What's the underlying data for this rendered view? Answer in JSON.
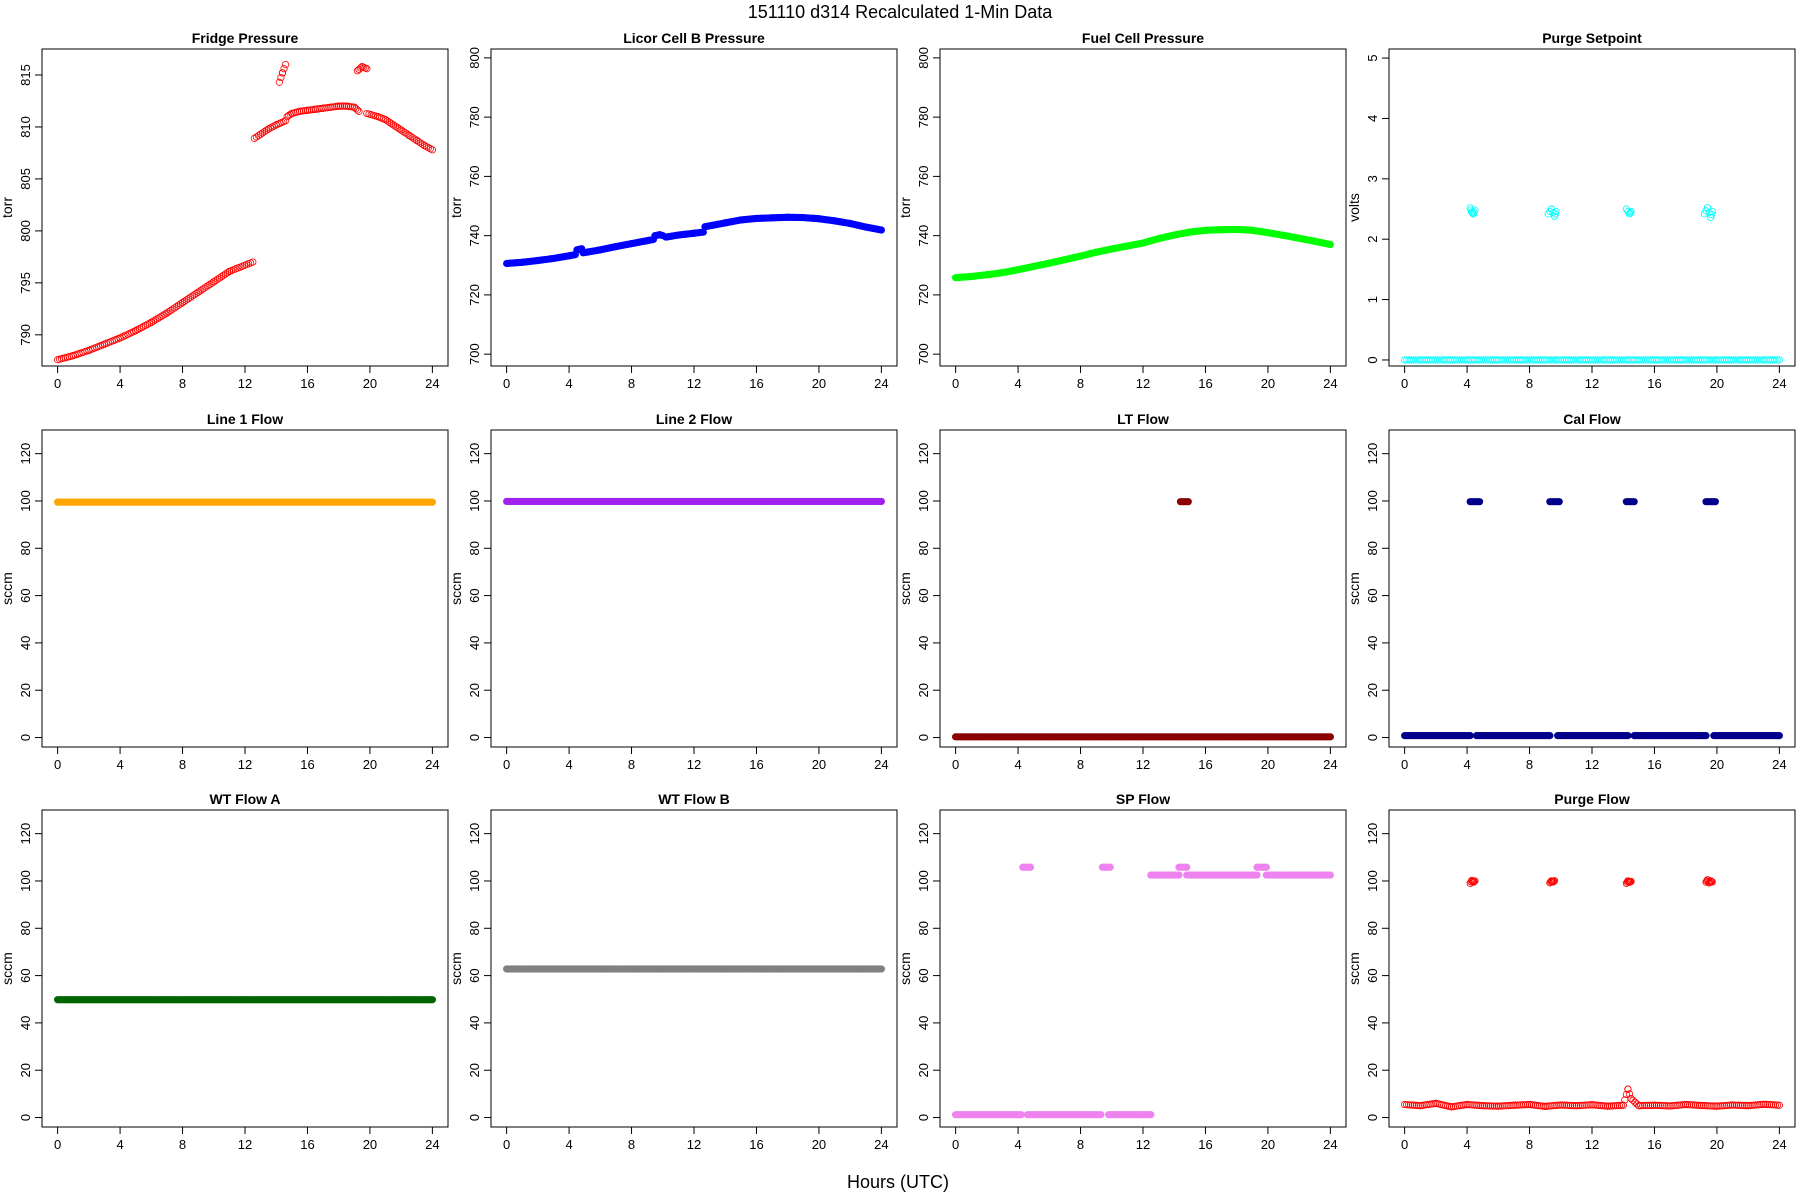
{
  "figure": {
    "title": "151110   d314   Recalculated 1-Min Data",
    "xlabel": "Hours (UTC)"
  },
  "chart_data": [
    {
      "type": "scatter",
      "title": "Fridge Pressure",
      "ylabel": "torr",
      "xlim": [
        -1,
        25
      ],
      "ylim": [
        787,
        817.5
      ],
      "xticks": [
        0,
        4,
        8,
        12,
        16,
        20,
        24
      ],
      "yticks": [
        790,
        795,
        800,
        805,
        810,
        815
      ],
      "color": "#ff0000",
      "marker": "open",
      "series": [
        {
          "x": [
            0,
            1,
            2,
            3,
            4,
            5,
            6,
            7,
            8,
            9,
            10,
            11,
            12.5
          ],
          "y": [
            787.6,
            788.0,
            788.5,
            789.1,
            789.7,
            790.4,
            791.2,
            792.1,
            793.1,
            794.1,
            795.1,
            796.1,
            797.0
          ]
        },
        {
          "x": [
            12.6,
            13,
            13.5,
            14,
            14.6
          ],
          "y": [
            808.9,
            809.3,
            809.8,
            810.2,
            810.6
          ]
        },
        {
          "x": [
            14.2,
            14.4,
            14.6
          ],
          "y": [
            814.3,
            815.2,
            816.0
          ]
        },
        {
          "x": [
            14.7,
            15,
            15.5,
            16,
            16.5,
            17,
            17.5,
            18,
            18.5,
            19,
            19.3
          ],
          "y": [
            811.0,
            811.3,
            811.5,
            811.6,
            811.7,
            811.8,
            811.9,
            812.0,
            812.0,
            811.9,
            811.5
          ]
        },
        {
          "x": [
            19.2,
            19.5,
            19.8
          ],
          "y": [
            815.4,
            815.8,
            815.6
          ]
        },
        {
          "x": [
            19.8,
            20.5,
            21,
            21.5,
            22,
            22.5,
            23,
            23.5,
            24
          ],
          "y": [
            811.3,
            811.0,
            810.7,
            810.2,
            809.7,
            809.2,
            808.7,
            808.2,
            807.8
          ]
        }
      ]
    },
    {
      "type": "scatter",
      "title": "Licor Cell B Pressure",
      "ylabel": "torr",
      "xlim": [
        -1,
        25
      ],
      "ylim": [
        696,
        803
      ],
      "xticks": [
        0,
        4,
        8,
        12,
        16,
        20,
        24
      ],
      "yticks": [
        700,
        720,
        740,
        760,
        780,
        800
      ],
      "color": "#0000ff",
      "marker": "filled",
      "series": [
        {
          "x": [
            0,
            1,
            2,
            3,
            4,
            4.4
          ],
          "y": [
            730.6,
            731.0,
            731.6,
            732.3,
            733.2,
            733.6
          ]
        },
        {
          "x": [
            4.5,
            4.8
          ],
          "y": [
            735.2,
            735.6
          ]
        },
        {
          "x": [
            4.9,
            6,
            7,
            8,
            9,
            9.4
          ],
          "y": [
            734.2,
            735.2,
            736.3,
            737.3,
            738.3,
            738.7
          ]
        },
        {
          "x": [
            9.5,
            9.8,
            10
          ],
          "y": [
            740.0,
            740.3,
            740.0
          ]
        },
        {
          "x": [
            10.2,
            11,
            12,
            12.6
          ],
          "y": [
            739.5,
            740.2,
            740.8,
            741.2
          ]
        },
        {
          "x": [
            12.7,
            14,
            15,
            16,
            17,
            18,
            19,
            20,
            21,
            22,
            23,
            24
          ],
          "y": [
            743.0,
            744.3,
            745.3,
            745.8,
            746.0,
            746.2,
            746.1,
            745.7,
            745.0,
            744.1,
            742.9,
            741.9
          ]
        }
      ]
    },
    {
      "type": "scatter",
      "title": "Fuel Cell Pressure",
      "ylabel": "torr",
      "xlim": [
        -1,
        25
      ],
      "ylim": [
        696,
        803
      ],
      "xticks": [
        0,
        4,
        8,
        12,
        16,
        20,
        24
      ],
      "yticks": [
        700,
        720,
        740,
        760,
        780,
        800
      ],
      "color": "#00ff00",
      "marker": "filled",
      "series": [
        {
          "x": [
            0,
            1,
            2,
            3,
            4,
            5,
            6,
            7,
            8,
            9,
            10,
            11,
            12,
            13,
            14,
            15,
            16,
            17,
            18,
            19,
            20,
            21,
            22,
            23,
            24
          ],
          "y": [
            725.8,
            726.2,
            726.8,
            727.5,
            728.5,
            729.6,
            730.7,
            731.9,
            733.1,
            734.4,
            735.5,
            736.5,
            737.5,
            739.0,
            740.2,
            741.2,
            741.8,
            742.0,
            742.1,
            741.8,
            741.0,
            740.1,
            739.1,
            738.1,
            737.0
          ]
        }
      ]
    },
    {
      "type": "scatter",
      "title": "Purge Setpoint",
      "ylabel": "volts",
      "xlim": [
        -1,
        25
      ],
      "ylim": [
        -0.1,
        5.15
      ],
      "xticks": [
        0,
        4,
        8,
        12,
        16,
        20,
        24
      ],
      "yticks": [
        0,
        1,
        2,
        3,
        4,
        5
      ],
      "color": "#00ffff",
      "marker": "open",
      "series": [
        {
          "x": [
            0,
            24
          ],
          "y": [
            0,
            0
          ]
        },
        {
          "x": [
            4.2,
            4.3,
            4.4,
            4.5
          ],
          "y": [
            2.52,
            2.45,
            2.42,
            2.48
          ]
        },
        {
          "x": [
            9.2,
            9.4,
            9.6,
            9.7
          ],
          "y": [
            2.42,
            2.5,
            2.38,
            2.46
          ]
        },
        {
          "x": [
            14.2,
            14.4,
            14.5
          ],
          "y": [
            2.5,
            2.42,
            2.46
          ]
        },
        {
          "x": [
            19.2,
            19.4,
            19.6,
            19.7
          ],
          "y": [
            2.42,
            2.52,
            2.36,
            2.46
          ]
        }
      ]
    },
    {
      "type": "scatter",
      "title": "Line 1 Flow",
      "ylabel": "sccm",
      "xlim": [
        -1,
        25
      ],
      "ylim": [
        -4,
        130
      ],
      "xticks": [
        0,
        4,
        8,
        12,
        16,
        20,
        24
      ],
      "yticks": [
        0,
        20,
        40,
        60,
        80,
        100,
        120
      ],
      "color": "#ffa500",
      "marker": "filled",
      "series": [
        {
          "x": [
            0,
            24
          ],
          "y": [
            99.5,
            99.5
          ]
        }
      ]
    },
    {
      "type": "scatter",
      "title": "Line 2 Flow",
      "ylabel": "sccm",
      "xlim": [
        -1,
        25
      ],
      "ylim": [
        -4,
        130
      ],
      "xticks": [
        0,
        4,
        8,
        12,
        16,
        20,
        24
      ],
      "yticks": [
        0,
        20,
        40,
        60,
        80,
        100,
        120
      ],
      "color": "#a020f0",
      "marker": "filled",
      "series": [
        {
          "x": [
            0,
            24
          ],
          "y": [
            99.8,
            99.8
          ]
        }
      ]
    },
    {
      "type": "scatter",
      "title": "LT Flow",
      "ylabel": "sccm",
      "xlim": [
        -1,
        25
      ],
      "ylim": [
        -4,
        130
      ],
      "xticks": [
        0,
        4,
        8,
        12,
        16,
        20,
        24
      ],
      "yticks": [
        0,
        20,
        40,
        60,
        80,
        100,
        120
      ],
      "color": "#8b0000",
      "marker": "filled",
      "series": [
        {
          "x": [
            0,
            24
          ],
          "y": [
            0.3,
            0.3
          ]
        },
        {
          "x": [
            14.4,
            14.9
          ],
          "y": [
            99.7,
            99.7
          ]
        }
      ]
    },
    {
      "type": "scatter",
      "title": "Cal Flow",
      "ylabel": "sccm",
      "xlim": [
        -1,
        25
      ],
      "ylim": [
        -4,
        130
      ],
      "xticks": [
        0,
        4,
        8,
        12,
        16,
        20,
        24
      ],
      "yticks": [
        0,
        20,
        40,
        60,
        80,
        100,
        120
      ],
      "color": "#00008b",
      "marker": "filled",
      "series": [
        {
          "x": [
            0,
            4.2
          ],
          "y": [
            0.8,
            0.8
          ]
        },
        {
          "x": [
            4.6,
            9.3
          ],
          "y": [
            0.8,
            0.8
          ]
        },
        {
          "x": [
            9.8,
            14.3
          ],
          "y": [
            0.8,
            0.8
          ]
        },
        {
          "x": [
            14.7,
            19.3
          ],
          "y": [
            0.8,
            0.8
          ]
        },
        {
          "x": [
            19.8,
            24
          ],
          "y": [
            0.8,
            0.8
          ]
        },
        {
          "x": [
            4.2,
            4.8
          ],
          "y": [
            99.7,
            99.7
          ]
        },
        {
          "x": [
            9.3,
            9.9
          ],
          "y": [
            99.7,
            99.7
          ]
        },
        {
          "x": [
            14.2,
            14.7
          ],
          "y": [
            99.7,
            99.7
          ]
        },
        {
          "x": [
            19.3,
            19.9
          ],
          "y": [
            99.7,
            99.7
          ]
        }
      ]
    },
    {
      "type": "scatter",
      "title": "WT Flow A",
      "ylabel": "sccm",
      "xlim": [
        -1,
        25
      ],
      "ylim": [
        -4,
        130
      ],
      "xticks": [
        0,
        4,
        8,
        12,
        16,
        20,
        24
      ],
      "yticks": [
        0,
        20,
        40,
        60,
        80,
        100,
        120
      ],
      "color": "#006400",
      "marker": "filled",
      "series": [
        {
          "x": [
            0,
            24
          ],
          "y": [
            49.8,
            49.8
          ]
        }
      ]
    },
    {
      "type": "scatter",
      "title": "WT Flow B",
      "ylabel": "sccm",
      "xlim": [
        -1,
        25
      ],
      "ylim": [
        -4,
        130
      ],
      "xticks": [
        0,
        4,
        8,
        12,
        16,
        20,
        24
      ],
      "yticks": [
        0,
        20,
        40,
        60,
        80,
        100,
        120
      ],
      "color": "#808080",
      "marker": "filled",
      "series": [
        {
          "x": [
            0,
            24
          ],
          "y": [
            62.8,
            62.8
          ]
        }
      ]
    },
    {
      "type": "scatter",
      "title": "SP Flow",
      "ylabel": "sccm",
      "xlim": [
        -1,
        25
      ],
      "ylim": [
        -4,
        130
      ],
      "xticks": [
        0,
        4,
        8,
        12,
        16,
        20,
        24
      ],
      "yticks": [
        0,
        20,
        40,
        60,
        80,
        100,
        120
      ],
      "color": "#ee82ee",
      "marker": "filled",
      "series": [
        {
          "x": [
            0,
            4.2
          ],
          "y": [
            1.2,
            1.2
          ]
        },
        {
          "x": [
            4.6,
            9.3
          ],
          "y": [
            1.2,
            1.2
          ]
        },
        {
          "x": [
            9.8,
            12.5
          ],
          "y": [
            1.2,
            1.2
          ]
        },
        {
          "x": [
            4.3,
            4.8
          ],
          "y": [
            105.8,
            105.8
          ]
        },
        {
          "x": [
            9.4,
            9.9
          ],
          "y": [
            105.8,
            105.8
          ]
        },
        {
          "x": [
            12.5,
            14.3
          ],
          "y": [
            102.5,
            102.5
          ]
        },
        {
          "x": [
            14.3,
            14.8
          ],
          "y": [
            105.8,
            105.8
          ]
        },
        {
          "x": [
            14.8,
            19.3
          ],
          "y": [
            102.5,
            102.5
          ]
        },
        {
          "x": [
            19.3,
            19.9
          ],
          "y": [
            105.8,
            105.8
          ]
        },
        {
          "x": [
            19.9,
            24
          ],
          "y": [
            102.5,
            102.5
          ]
        }
      ]
    },
    {
      "type": "scatter",
      "title": "Purge Flow",
      "ylabel": "sccm",
      "xlim": [
        -1,
        25
      ],
      "ylim": [
        -4,
        130
      ],
      "xticks": [
        0,
        4,
        8,
        12,
        16,
        20,
        24
      ],
      "yticks": [
        0,
        20,
        40,
        60,
        80,
        100,
        120
      ],
      "color": "#ff0000",
      "marker": "open",
      "series": [
        {
          "x": [
            0,
            1,
            2,
            3,
            4,
            5,
            6,
            7,
            8,
            9,
            10,
            11,
            12,
            13,
            14,
            14.3,
            14.5,
            15,
            16,
            17,
            18,
            19,
            20,
            21,
            22,
            23,
            24
          ],
          "y": [
            5.5,
            5.0,
            6.0,
            4.5,
            5.5,
            5.0,
            4.8,
            5.2,
            5.5,
            4.7,
            5.3,
            5.0,
            5.4,
            4.8,
            5.2,
            12.0,
            8.0,
            5.0,
            5.2,
            4.9,
            5.5,
            5.1,
            4.8,
            5.3,
            5.0,
            5.6,
            5.2
          ]
        },
        {
          "x": [
            4.2,
            4.3,
            4.4,
            4.5
          ],
          "y": [
            99.0,
            100.2,
            99.5,
            100.0
          ]
        },
        {
          "x": [
            9.3,
            9.4,
            9.5,
            9.6
          ],
          "y": [
            99.2,
            100.0,
            99.6,
            100.1
          ]
        },
        {
          "x": [
            14.2,
            14.3,
            14.4,
            14.5
          ],
          "y": [
            99.0,
            100.0,
            99.5,
            99.8
          ]
        },
        {
          "x": [
            19.3,
            19.4,
            19.5,
            19.6,
            19.7
          ],
          "y": [
            99.5,
            100.5,
            99.2,
            100.0,
            99.6
          ]
        }
      ]
    }
  ]
}
